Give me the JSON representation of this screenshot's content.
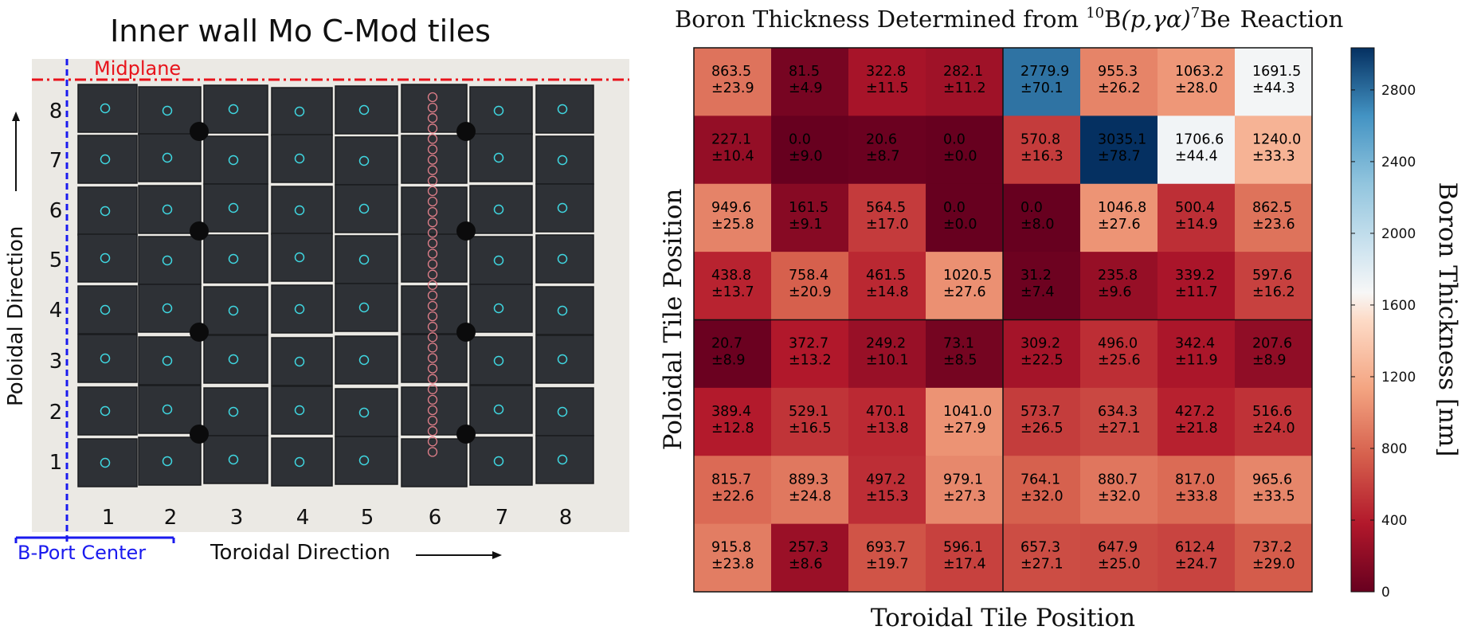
{
  "photo_panel": {
    "title": "Inner wall Mo C-Mod tiles",
    "midplane_label": "Midplane",
    "port_label": "B-Port Center",
    "x_direction_label": "Toroidal Direction",
    "y_direction_label": "Poloidal Direction",
    "column_labels": [
      "1",
      "2",
      "3",
      "4",
      "5",
      "6",
      "7",
      "8"
    ],
    "row_labels": [
      "8",
      "7",
      "6",
      "5",
      "4",
      "3",
      "2",
      "1"
    ],
    "colors": {
      "tile": "#2e3136",
      "background": "#eceae5",
      "marker": "#3fd6e0",
      "column6_marker": "#e07f8a",
      "midplane": "#e8131b",
      "port": "#1a1aee"
    }
  },
  "chart_data": {
    "type": "heatmap",
    "title_prefix": "Boron Thickness Determined from ",
    "title_sup1": "10",
    "title_b": "B",
    "title_paren": "(p,γα)",
    "title_sup2": "7",
    "title_be": "Be",
    "title_suffix": "Reaction",
    "xlabel": "Toroidal Tile Position",
    "ylabel": "Poloidal Tile Position",
    "colorbar_label": "Boron Thickness [nm]",
    "colorbar_ticks": [
      "0",
      "400",
      "800",
      "1200",
      "1600",
      "2000",
      "2400",
      "2800"
    ],
    "colorbar_range": [
      0,
      3035.1
    ],
    "rows": [
      {
        "values": [
          863.5,
          81.5,
          322.8,
          282.1,
          2779.9,
          955.3,
          1063.2,
          1691.5
        ],
        "labels": [
          "863.5",
          "81.5",
          "322.8",
          "282.1",
          "2779.9",
          "955.3",
          "1063.2",
          "1691.5"
        ],
        "errors": [
          "±23.9",
          "±4.9",
          "±11.5",
          "±11.2",
          "±70.1",
          "±26.2",
          "±28.0",
          "±44.3"
        ]
      },
      {
        "values": [
          227.1,
          0.0,
          20.6,
          0.0,
          570.8,
          3035.1,
          1706.6,
          1240.0
        ],
        "labels": [
          "227.1",
          "0.0",
          "20.6",
          "0.0",
          "570.8",
          "3035.1",
          "1706.6",
          "1240.0"
        ],
        "errors": [
          "±10.4",
          "±9.0",
          "±8.7",
          "±0.0",
          "±16.3",
          "±78.7",
          "±44.4",
          "±33.3"
        ]
      },
      {
        "values": [
          949.6,
          161.5,
          564.5,
          0.0,
          0.0,
          1046.8,
          500.4,
          862.5
        ],
        "labels": [
          "949.6",
          "161.5",
          "564.5",
          "0.0",
          "0.0",
          "1046.8",
          "500.4",
          "862.5"
        ],
        "errors": [
          "±25.8",
          "±9.1",
          "±17.0",
          "±0.0",
          "±8.0",
          "±27.6",
          "±14.9",
          "±23.6"
        ]
      },
      {
        "values": [
          438.8,
          758.4,
          461.5,
          1020.5,
          31.2,
          235.8,
          339.2,
          597.6
        ],
        "labels": [
          "438.8",
          "758.4",
          "461.5",
          "1020.5",
          "31.2",
          "235.8",
          "339.2",
          "597.6"
        ],
        "errors": [
          "±13.7",
          "±20.9",
          "±14.8",
          "±27.6",
          "±7.4",
          "±9.6",
          "±11.7",
          "±16.2"
        ]
      },
      {
        "values": [
          20.7,
          372.7,
          249.2,
          73.1,
          309.2,
          496.0,
          342.4,
          207.6
        ],
        "labels": [
          "20.7",
          "372.7",
          "249.2",
          "73.1",
          "309.2",
          "496.0",
          "342.4",
          "207.6"
        ],
        "errors": [
          "±8.9",
          "±13.2",
          "±10.1",
          "±8.5",
          "±22.5",
          "±25.6",
          "±11.9",
          "±8.9"
        ]
      },
      {
        "values": [
          389.4,
          529.1,
          470.1,
          1041.0,
          573.7,
          634.3,
          427.2,
          516.6
        ],
        "labels": [
          "389.4",
          "529.1",
          "470.1",
          "1041.0",
          "573.7",
          "634.3",
          "427.2",
          "516.6"
        ],
        "errors": [
          "±12.8",
          "±16.5",
          "±13.8",
          "±27.9",
          "±26.5",
          "±27.1",
          "±21.8",
          "±24.0"
        ]
      },
      {
        "values": [
          815.7,
          889.3,
          497.2,
          979.1,
          764.1,
          880.7,
          817.0,
          965.6
        ],
        "labels": [
          "815.7",
          "889.3",
          "497.2",
          "979.1",
          "764.1",
          "880.7",
          "817.0",
          "965.6"
        ],
        "errors": [
          "±22.6",
          "±24.8",
          "±15.3",
          "±27.3",
          "±32.0",
          "±32.0",
          "±33.8",
          "±33.5"
        ]
      },
      {
        "values": [
          915.8,
          257.3,
          693.7,
          596.1,
          657.3,
          647.9,
          612.4,
          737.2
        ],
        "labels": [
          "915.8",
          "257.3",
          "693.7",
          "596.1",
          "657.3",
          "647.9",
          "612.4",
          "737.2"
        ],
        "errors": [
          "±23.8",
          "±8.6",
          "±19.7",
          "±17.4",
          "±27.1",
          "±25.0",
          "±24.7",
          "±29.0"
        ]
      }
    ]
  }
}
